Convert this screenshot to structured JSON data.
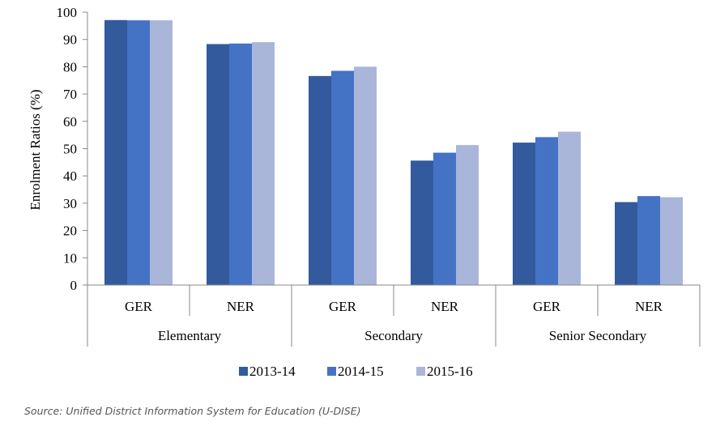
{
  "chart_data": {
    "type": "bar",
    "ylabel": "Enrolment Ratios (%)",
    "xlabel": "",
    "title": "",
    "ylim": [
      0,
      100
    ],
    "yticks": [
      0,
      10,
      20,
      30,
      40,
      50,
      60,
      70,
      80,
      90,
      100
    ],
    "groups": [
      {
        "name": "Elementary",
        "categories": [
          "GER",
          "NER"
        ]
      },
      {
        "name": "Secondary",
        "categories": [
          "GER",
          "NER"
        ]
      },
      {
        "name": "Senior Secondary",
        "categories": [
          "GER",
          "NER"
        ]
      }
    ],
    "series": [
      {
        "name": "2013-14",
        "color": "#335a9c",
        "values": [
          97.1,
          88.3,
          76.6,
          45.6,
          52.2,
          30.4
        ]
      },
      {
        "name": "2014-15",
        "color": "#4472c4",
        "values": [
          97.0,
          88.5,
          78.5,
          48.5,
          54.2,
          32.6
        ]
      },
      {
        "name": "2015-16",
        "color": "#a9b6da",
        "values": [
          97.0,
          89.0,
          80.0,
          51.3,
          56.2,
          32.2
        ]
      }
    ],
    "grid": false,
    "legend": "bottom"
  },
  "source_text": "Source: Unified District Information System for Education (U-DISE)"
}
